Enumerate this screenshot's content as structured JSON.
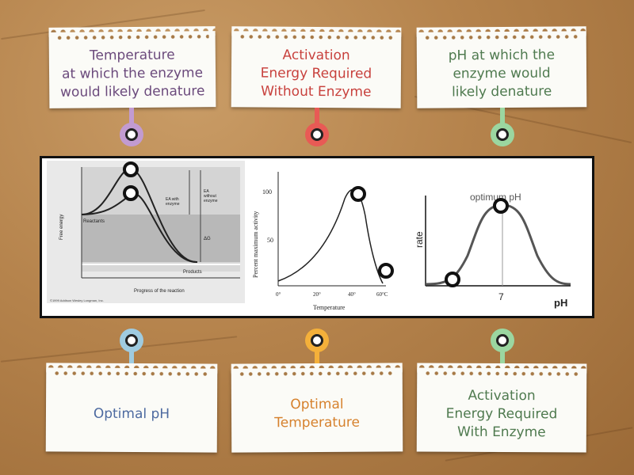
{
  "top_labels": [
    {
      "text_line1": "Temperature",
      "text_line2": "at which the enzyme",
      "text_line3": "would likely denature",
      "color": "#6b4a7c",
      "pin_color": "#c29bd1"
    },
    {
      "text_line1": "Activation",
      "text_line2": "Energy Required",
      "text_line3": "Without Enzyme",
      "color": "#c8413d",
      "pin_color": "#e85a55"
    },
    {
      "text_line1": "pH at which the",
      "text_line2": "enzyme would",
      "text_line3": "likely denature",
      "color": "#4f7a4f",
      "pin_color": "#9bd6a0"
    }
  ],
  "bottom_labels": [
    {
      "text_line1": "Optimal pH",
      "color": "#4d6aa0",
      "pin_color": "#9fcbe0"
    },
    {
      "text_line1": "Optimal",
      "text_line2": "Temperature",
      "color": "#d6812d",
      "pin_color": "#f4b03a"
    },
    {
      "text_line1": "Activation",
      "text_line2": "Energy Required",
      "text_line3": "With Enzyme",
      "color": "#4f7a4f",
      "pin_color": "#9bd6a0"
    }
  ],
  "graph1": {
    "y_label": "Free energy",
    "x_label": "Progress of the reaction",
    "reactants": "Reactants",
    "products": "Products",
    "ea_with_l1": "EA with",
    "ea_with_l2": "enzyme",
    "ea_without_l1": "EA",
    "ea_without_l2": "without",
    "ea_without_l3": "enzyme",
    "delta_g": "ΔG",
    "copyright": "©1999 Addison Wesley Longman, Inc."
  },
  "graph2": {
    "y_label": "Percent maximum activity",
    "x_label": "Temperature",
    "y_ticks": [
      "100",
      "50"
    ],
    "x_ticks": [
      "0°",
      "20°",
      "40°",
      "60°C"
    ]
  },
  "graph3": {
    "title": "optimum pH",
    "y_label": "rate",
    "x_label": "pH",
    "x_tick": "7"
  }
}
